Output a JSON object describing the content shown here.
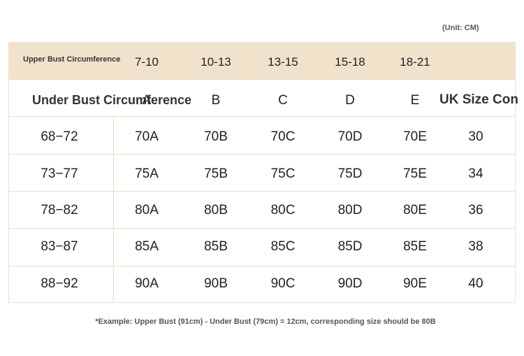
{
  "unit": "(Unit: CM)",
  "table": {
    "upper_label": "Upper Bust Circumference",
    "under_label": "Under Bust Circumference",
    "upper_ranges": [
      "7-10",
      "10-13",
      "13-15",
      "15-18",
      "18-21"
    ],
    "cups": [
      "A",
      "B",
      "C",
      "D",
      "E"
    ],
    "uk_header": "UK Size Con",
    "rows": [
      [
        "68−72",
        "70A",
        "70B",
        "70C",
        "70D",
        "70E",
        "30"
      ],
      [
        "73−77",
        "75A",
        "75B",
        "75C",
        "75D",
        "75E",
        "34"
      ],
      [
        "78−82",
        "80A",
        "80B",
        "80C",
        "80D",
        "80E",
        "36"
      ],
      [
        "83−87",
        "85A",
        "85B",
        "85C",
        "85D",
        "85E",
        "38"
      ],
      [
        "88−92",
        "90A",
        "90B",
        "90C",
        "90D",
        "90E",
        "40"
      ]
    ]
  },
  "footnote": "*Example: Upper Bust (91cm) - Under Bust (79cm) = 12cm, corresponding size should be 80B"
}
